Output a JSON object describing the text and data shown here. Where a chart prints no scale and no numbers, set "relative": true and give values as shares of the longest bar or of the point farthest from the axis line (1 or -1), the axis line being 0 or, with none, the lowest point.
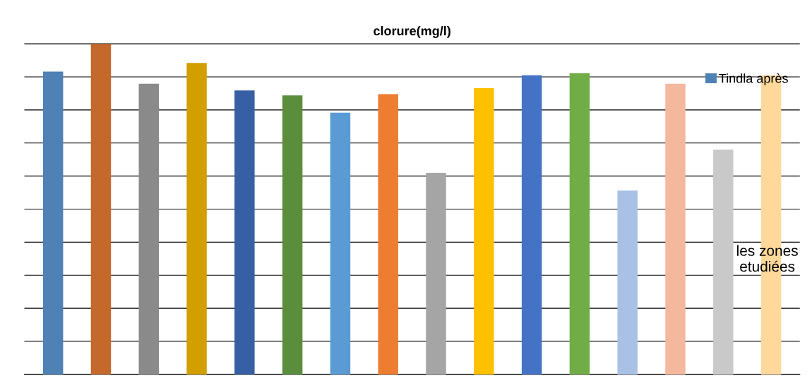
{
  "chart_data": {
    "type": "bar",
    "title": "clorure(mg/l)",
    "relative": true,
    "grid": "y",
    "legend": "right",
    "categories": [
      null,
      null,
      null,
      null,
      null,
      null,
      null,
      null,
      null,
      null,
      null,
      null,
      null,
      null,
      null,
      null
    ],
    "series": [
      {
        "name": "Tindla après",
        "color": "#4e81b4",
        "values": [
          0.916,
          1,
          0.879,
          0.942,
          0.859,
          0.844,
          0.792,
          0.848,
          0.61,
          0.866,
          0.905,
          0.911,
          0.556,
          0.879,
          0.68,
          0.905
        ],
        "colors": [
          "#4e81b4",
          "#c5682b",
          "#8a8a8a",
          "#d29e00",
          "#375fa4",
          "#5b8e3c",
          "#5b9bd5",
          "#ed7d31",
          "#a5a5a5",
          "#ffc000",
          "#4472c4",
          "#70ad47",
          "#a9c1e4",
          "#f4b89f",
          "#c9c9c9",
          "#ffd89a"
        ]
      }
    ],
    "annotations": [
      "les zones\netudiées"
    ]
  }
}
